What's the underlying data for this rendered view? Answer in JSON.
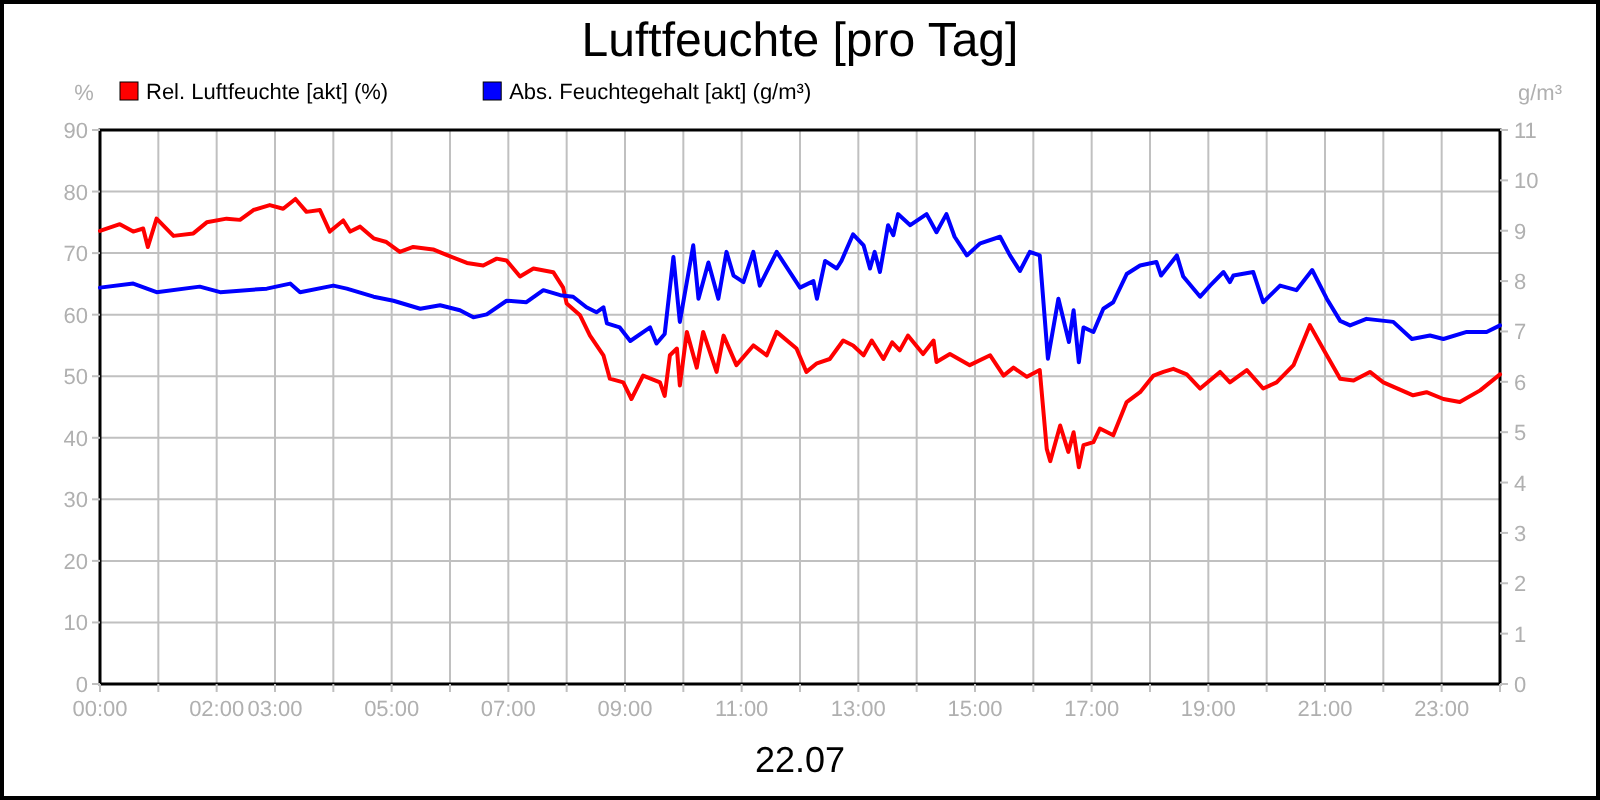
{
  "chart_data": {
    "type": "line",
    "title": "Luftfeuchte [pro Tag]",
    "xlabel": "22.07",
    "ylabel": "%",
    "y2label": "g/m³",
    "xlim": [
      0,
      24
    ],
    "xticks": [
      {
        "value": 0,
        "label": "00:00"
      },
      {
        "value": 1,
        "label": null
      },
      {
        "value": 2,
        "label": "02:00"
      },
      {
        "value": 3,
        "label": "03:00"
      },
      {
        "value": 4,
        "label": null
      },
      {
        "value": 5,
        "label": "05:00"
      },
      {
        "value": 6,
        "label": null
      },
      {
        "value": 7,
        "label": "07:00"
      },
      {
        "value": 8,
        "label": null
      },
      {
        "value": 9,
        "label": "09:00"
      },
      {
        "value": 10,
        "label": null
      },
      {
        "value": 11,
        "label": "11:00"
      },
      {
        "value": 12,
        "label": null
      },
      {
        "value": 13,
        "label": "13:00"
      },
      {
        "value": 14,
        "label": null
      },
      {
        "value": 15,
        "label": "15:00"
      },
      {
        "value": 16,
        "label": null
      },
      {
        "value": 17,
        "label": "17:00"
      },
      {
        "value": 18,
        "label": null
      },
      {
        "value": 19,
        "label": "19:00"
      },
      {
        "value": 20,
        "label": null
      },
      {
        "value": 21,
        "label": "21:00"
      },
      {
        "value": 22,
        "label": null
      },
      {
        "value": 23,
        "label": "23:00"
      },
      {
        "value": 24,
        "label": null
      }
    ],
    "ylim": [
      0,
      90
    ],
    "yticks": [
      0,
      10,
      20,
      30,
      40,
      50,
      60,
      70,
      80,
      90
    ],
    "y2lim": [
      0,
      11
    ],
    "y2ticks": [
      0,
      1,
      2,
      3,
      4,
      5,
      6,
      7,
      8,
      9,
      10,
      11
    ],
    "grid": true,
    "legend": "top left",
    "marker": "none",
    "line_style": "solid",
    "series": [
      {
        "name": "Rel. Luftfeuchte [akt] (%)",
        "color": "#ff0000",
        "x": [
          0,
          0.34,
          0.57,
          0.74,
          0.82,
          0.97,
          1.26,
          1.6,
          1.83,
          2.17,
          2.4,
          2.63,
          2.91,
          3.14,
          3.35,
          3.54,
          3.77,
          3.94,
          4.17,
          4.29,
          4.46,
          4.69,
          4.91,
          5.14,
          5.37,
          5.71,
          5.94,
          6.29,
          6.57,
          6.8,
          6.97,
          7.2,
          7.43,
          7.77,
          7.94,
          8.0,
          8.23,
          8.4,
          8.63,
          8.74,
          8.97,
          9.11,
          9.31,
          9.6,
          9.68,
          9.77,
          9.89,
          9.94,
          10.06,
          10.23,
          10.34,
          10.57,
          10.69,
          10.91,
          11.2,
          11.43,
          11.6,
          11.94,
          12.11,
          12.29,
          12.51,
          12.74,
          12.91,
          13.09,
          13.23,
          13.43,
          13.58,
          13.71,
          13.85,
          14.11,
          14.29,
          14.34,
          14.57,
          14.91,
          15.26,
          15.49,
          15.66,
          15.89,
          16.11,
          16.23,
          16.29,
          16.46,
          16.6,
          16.69,
          16.78,
          16.86,
          17.03,
          17.14,
          17.37,
          17.6,
          17.83,
          18.06,
          18.23,
          18.4,
          18.63,
          18.86,
          19.2,
          19.37,
          19.66,
          19.94,
          20.17,
          20.46,
          20.74,
          21.03,
          21.26,
          21.49,
          21.77,
          22.0,
          22.51,
          22.74,
          23.03,
          23.31,
          23.66,
          24.0
        ],
        "values": [
          73.6,
          74.7,
          73.5,
          74,
          71,
          75.6,
          72.8,
          73.2,
          75,
          75.6,
          75.4,
          77,
          77.8,
          77.2,
          78.8,
          76.7,
          77,
          73.5,
          75.3,
          73.5,
          74.3,
          72.4,
          71.8,
          70.2,
          71,
          70.6,
          69.7,
          68.4,
          68,
          69.1,
          68.8,
          66.2,
          67.5,
          66.9,
          64.4,
          61.8,
          59.9,
          56.6,
          53.4,
          49.6,
          49,
          46.3,
          50.1,
          49,
          46.8,
          53.4,
          54.5,
          48.5,
          57.2,
          51.4,
          57.2,
          50.7,
          56.6,
          51.8,
          55,
          53.4,
          57.2,
          54.5,
          50.7,
          52.1,
          52.8,
          55.8,
          55,
          53.4,
          55.8,
          52.8,
          55.5,
          54.2,
          56.6,
          53.6,
          55.8,
          52.3,
          53.6,
          51.8,
          53.4,
          50.1,
          51.4,
          49.9,
          51,
          38.2,
          36.2,
          42,
          37.7,
          40.9,
          35.2,
          38.8,
          39.3,
          41.5,
          40.4,
          45.8,
          47.4,
          50.1,
          50.7,
          51.2,
          50.3,
          48,
          50.7,
          49,
          51,
          48,
          49,
          51.8,
          58.3,
          53.4,
          49.6,
          49.3,
          50.7,
          49,
          46.9,
          47.4,
          46.3,
          45.8,
          47.7,
          50.3
        ]
      },
      {
        "name": "Abs. Feuchtegehalt [akt] (g/m³)",
        "color": "#0000ff",
        "axis": "y2",
        "x": [
          0,
          0.57,
          0.97,
          1.71,
          2.06,
          2.86,
          3.26,
          3.43,
          4.0,
          4.23,
          4.69,
          5.03,
          5.49,
          5.83,
          6.17,
          6.4,
          6.63,
          6.97,
          7.31,
          7.6,
          7.89,
          8.11,
          8.34,
          8.51,
          8.63,
          8.69,
          8.91,
          9.09,
          9.43,
          9.54,
          9.68,
          9.83,
          9.94,
          10.17,
          10.26,
          10.43,
          10.6,
          10.74,
          10.86,
          11.03,
          11.2,
          11.31,
          11.6,
          12.0,
          12.23,
          12.29,
          12.43,
          12.63,
          12.71,
          12.91,
          13.09,
          13.2,
          13.28,
          13.37,
          13.51,
          13.6,
          13.68,
          13.89,
          14.17,
          14.34,
          14.51,
          14.65,
          14.86,
          15.09,
          15.43,
          15.6,
          15.77,
          15.94,
          16.11,
          16.25,
          16.43,
          16.61,
          16.69,
          16.78,
          16.86,
          17.03,
          17.2,
          17.37,
          17.6,
          17.83,
          18.11,
          18.19,
          18.46,
          18.57,
          18.86,
          19.03,
          19.26,
          19.37,
          19.43,
          19.77,
          19.94,
          20.23,
          20.51,
          20.78,
          21.03,
          21.26,
          21.43,
          21.71,
          22.17,
          22.49,
          22.8,
          23.03,
          23.43,
          23.77,
          24.0
        ],
        "values": [
          7.87,
          7.95,
          7.78,
          7.89,
          7.78,
          7.85,
          7.95,
          7.78,
          7.91,
          7.85,
          7.69,
          7.61,
          7.45,
          7.52,
          7.42,
          7.28,
          7.34,
          7.61,
          7.58,
          7.82,
          7.72,
          7.69,
          7.48,
          7.38,
          7.48,
          7.16,
          7.08,
          6.81,
          7.08,
          6.76,
          6.95,
          8.48,
          7.19,
          8.71,
          7.65,
          8.37,
          7.65,
          8.58,
          8.11,
          7.98,
          8.58,
          7.91,
          8.58,
          7.87,
          8.0,
          7.65,
          8.4,
          8.25,
          8.4,
          8.93,
          8.71,
          8.25,
          8.58,
          8.18,
          9.11,
          8.91,
          9.33,
          9.11,
          9.33,
          8.97,
          9.33,
          8.88,
          8.51,
          8.75,
          8.88,
          8.51,
          8.2,
          8.58,
          8.51,
          6.46,
          7.65,
          6.79,
          7.42,
          6.39,
          7.08,
          6.99,
          7.45,
          7.58,
          8.14,
          8.31,
          8.38,
          8.11,
          8.51,
          8.09,
          7.69,
          7.91,
          8.18,
          7.98,
          8.11,
          8.18,
          7.58,
          7.91,
          7.82,
          8.22,
          7.65,
          7.21,
          7.12,
          7.25,
          7.19,
          6.85,
          6.92,
          6.85,
          6.99,
          6.99,
          7.12
        ]
      }
    ]
  }
}
